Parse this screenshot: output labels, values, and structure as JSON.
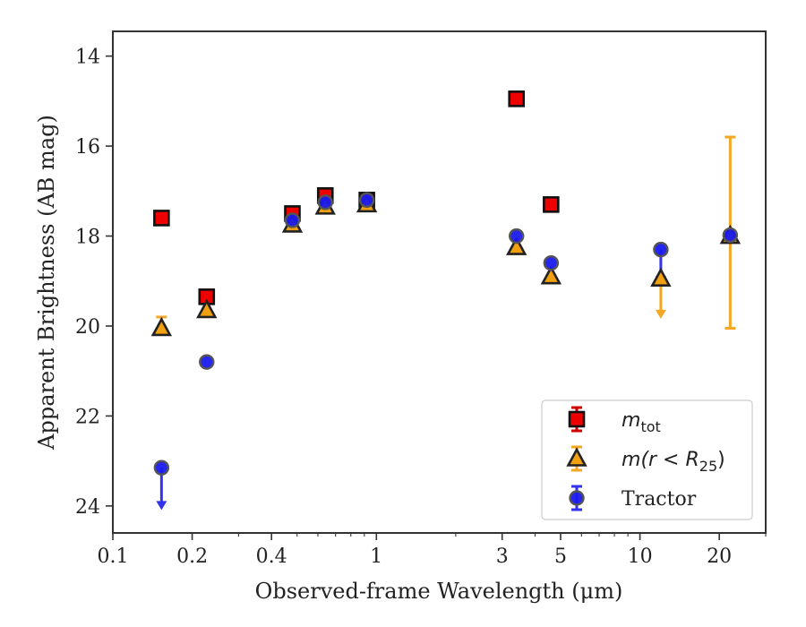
{
  "chart_data": {
    "type": "scatter",
    "xlabel": "Observed-frame Wavelength (μm)",
    "ylabel": "Apparent Brightness (AB mag)",
    "xscale": "log",
    "xlim": [
      0.1,
      30
    ],
    "ylim": [
      24.6,
      13.45
    ],
    "y_inverted": true,
    "xticks": [
      0.1,
      0.2,
      0.4,
      1,
      3,
      5,
      10,
      20
    ],
    "xtick_labels": [
      "0.1",
      "0.2",
      "0.4",
      "1",
      "3",
      "5",
      "10",
      "20"
    ],
    "yticks": [
      14,
      16,
      18,
      20,
      22,
      24
    ],
    "ytick_labels": [
      "14",
      "16",
      "18",
      "20",
      "22",
      "24"
    ],
    "legend_position": "lower-right",
    "series": [
      {
        "key": "mtot",
        "name": "m_tot",
        "marker": "square",
        "face_color": "#ee0000",
        "error_color": "#cc0000",
        "points": [
          {
            "x": 0.153,
            "y": 17.6
          },
          {
            "x": 0.227,
            "y": 19.35
          },
          {
            "x": 0.48,
            "y": 17.5
          },
          {
            "x": 0.64,
            "y": 17.1
          },
          {
            "x": 0.92,
            "y": 17.2
          },
          {
            "x": 3.4,
            "y": 14.95
          },
          {
            "x": 4.6,
            "y": 17.3
          }
        ]
      },
      {
        "key": "mr25",
        "name": "m(r < R25)",
        "marker": "triangle",
        "face_color": "#f0a010",
        "error_color": "#f5a623",
        "points": [
          {
            "x": 0.153,
            "y": 20.05,
            "err_up": 0.25
          },
          {
            "x": 0.227,
            "y": 19.65
          },
          {
            "x": 0.48,
            "y": 17.75
          },
          {
            "x": 0.64,
            "y": 17.35
          },
          {
            "x": 0.92,
            "y": 17.3
          },
          {
            "x": 3.4,
            "y": 18.25
          },
          {
            "x": 4.6,
            "y": 18.9
          },
          {
            "x": 12.0,
            "y": 18.95,
            "upper_limit": true,
            "arrow_to": 19.8
          },
          {
            "x": 22.0,
            "y": 18.0,
            "err_up": 2.2,
            "err_down": 2.05
          }
        ]
      },
      {
        "key": "tractor",
        "name": "Tractor",
        "marker": "circle",
        "face_color": "#1a1aee",
        "error_color": "#3333ee",
        "points": [
          {
            "x": 0.153,
            "y": 23.15,
            "upper_limit": true,
            "arrow_to": 24.05
          },
          {
            "x": 0.227,
            "y": 20.8
          },
          {
            "x": 0.48,
            "y": 17.65
          },
          {
            "x": 0.64,
            "y": 17.25
          },
          {
            "x": 0.92,
            "y": 17.2
          },
          {
            "x": 3.4,
            "y": 18.0
          },
          {
            "x": 4.6,
            "y": 18.6
          },
          {
            "x": 12.0,
            "y": 18.3,
            "upper_limit": true,
            "arrow_to": 19.05
          },
          {
            "x": 22.0,
            "y": 17.98
          }
        ]
      }
    ],
    "legend": [
      {
        "key": "mtot",
        "italic": "m",
        "sub": "tot",
        "rest": ""
      },
      {
        "key": "mr25",
        "italic": "m",
        "sub": "25",
        "rest": "(r < R"
      },
      {
        "key": "tractor",
        "italic": "",
        "sub": "",
        "rest": "Tractor"
      }
    ]
  }
}
